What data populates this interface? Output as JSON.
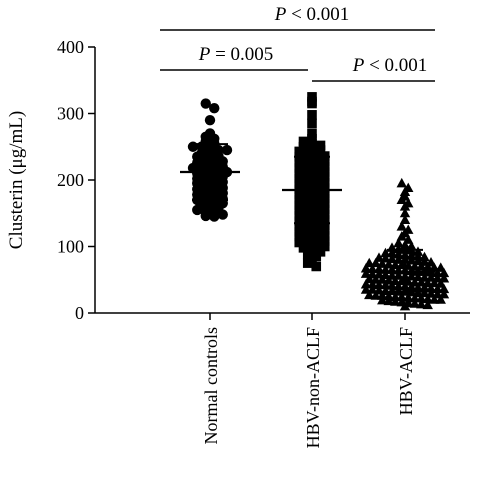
{
  "chart_data": {
    "type": "scatter",
    "ylabel": "Clusterin (μg/mL)",
    "ylim": [
      0,
      400
    ],
    "yticks": [
      0,
      100,
      200,
      300,
      400
    ],
    "categories": [
      "Normal controls",
      "HBV-non-ACLF",
      "HBV-ACLF"
    ],
    "series": [
      {
        "name": "Normal controls",
        "marker": "circle",
        "mean": 212,
        "sd_low": 170,
        "sd_high": 254,
        "values": [
          315,
          308,
          290,
          270,
          265,
          262,
          258,
          255,
          250,
          250,
          247,
          245,
          245,
          240,
          238,
          236,
          235,
          232,
          230,
          228,
          226,
          225,
          222,
          220,
          218,
          217,
          215,
          213,
          212,
          210,
          208,
          206,
          205,
          202,
          200,
          198,
          197,
          195,
          192,
          190,
          188,
          186,
          185,
          182,
          180,
          178,
          176,
          175,
          172,
          170,
          168,
          166,
          165,
          162,
          160,
          158,
          155,
          152,
          150,
          148,
          146,
          145
        ]
      },
      {
        "name": "HBV-non-ACLF",
        "marker": "square",
        "mean": 185,
        "sd_low": 135,
        "sd_high": 235,
        "values": [
          325,
          318,
          315,
          298,
          285,
          270,
          262,
          258,
          255,
          252,
          250,
          248,
          245,
          243,
          240,
          238,
          236,
          235,
          232,
          230,
          228,
          226,
          225,
          222,
          220,
          218,
          216,
          215,
          212,
          210,
          208,
          206,
          205,
          202,
          200,
          198,
          196,
          195,
          192,
          190,
          188,
          186,
          185,
          182,
          180,
          178,
          176,
          175,
          172,
          170,
          168,
          166,
          165,
          162,
          160,
          158,
          156,
          155,
          152,
          150,
          148,
          146,
          145,
          142,
          140,
          138,
          136,
          135,
          132,
          130,
          128,
          126,
          125,
          122,
          120,
          118,
          116,
          115,
          112,
          110,
          108,
          106,
          105,
          102,
          100,
          98,
          95,
          92,
          88,
          85,
          80,
          75,
          70
        ]
      },
      {
        "name": "HBV-ACLF",
        "marker": "triangle",
        "mean": 62,
        "sd_low": 32,
        "sd_high": 95,
        "values": [
          195,
          188,
          182,
          175,
          170,
          165,
          160,
          150,
          140,
          130,
          125,
          120,
          115,
          110,
          105,
          102,
          100,
          98,
          96,
          95,
          94,
          92,
          90,
          90,
          88,
          87,
          86,
          85,
          84,
          83,
          82,
          81,
          80,
          80,
          79,
          78,
          77,
          76,
          75,
          75,
          74,
          73,
          72,
          72,
          71,
          70,
          70,
          69,
          68,
          68,
          67,
          66,
          66,
          65,
          65,
          64,
          64,
          63,
          62,
          62,
          61,
          60,
          60,
          59,
          58,
          58,
          57,
          56,
          56,
          55,
          55,
          54,
          53,
          53,
          52,
          52,
          51,
          50,
          50,
          49,
          48,
          48,
          47,
          46,
          46,
          45,
          45,
          44,
          43,
          43,
          42,
          42,
          41,
          40,
          40,
          39,
          38,
          38,
          37,
          36,
          36,
          35,
          35,
          34,
          33,
          33,
          32,
          32,
          31,
          30,
          30,
          29,
          28,
          28,
          27,
          26,
          26,
          25,
          24,
          24,
          23,
          22,
          22,
          21,
          20,
          20,
          19,
          18,
          17,
          16,
          15,
          14,
          13,
          12,
          10
        ]
      }
    ],
    "comparisons": [
      {
        "from": 0,
        "to": 2,
        "label_prefix": "P",
        "label_rest": " < 0.001"
      },
      {
        "from": 0,
        "to": 1,
        "label_prefix": "P",
        "label_rest": " = 0.005"
      },
      {
        "from": 1,
        "to": 2,
        "label_prefix": "P",
        "label_rest": " < 0.001"
      }
    ]
  }
}
